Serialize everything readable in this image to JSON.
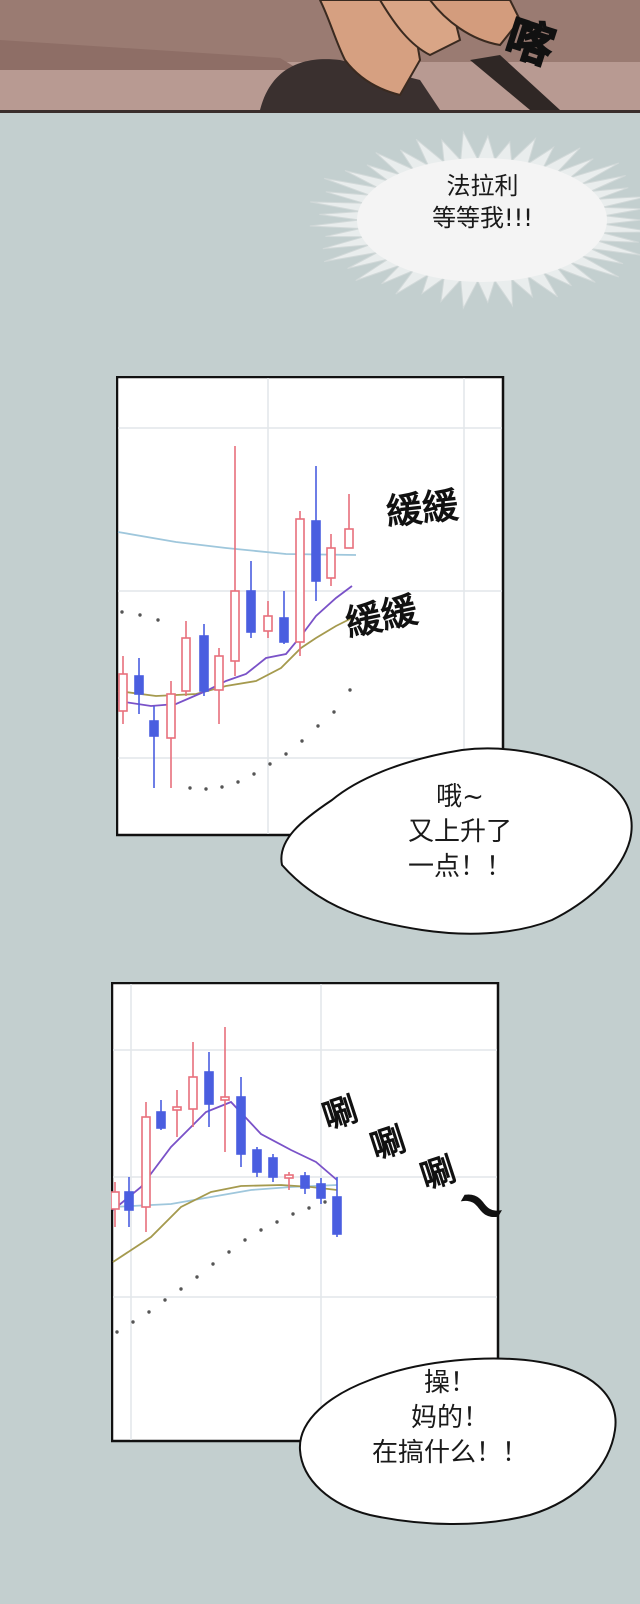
{
  "top_panel": {
    "sfx": "喀"
  },
  "shout_bubble": {
    "line1": "法拉利",
    "line2": "等等我!!!"
  },
  "chart_panel_1": {
    "sfx_1": "緩緩",
    "sfx_2": "緩緩",
    "bubble": {
      "line1": "哦~",
      "line2": "又上升了",
      "line3": "一点！！"
    }
  },
  "chart_panel_2": {
    "sfx_1": "唰",
    "sfx_2": "唰",
    "sfx_3": "唰",
    "sfx_tilde": "~",
    "bubble": {
      "line1": "操！",
      "line2": "妈的！",
      "line3": "在搞什么！！"
    }
  },
  "colors": {
    "background": "#c3cfcf",
    "candle_up": "#e8707c",
    "candle_down": "#4a5ee0",
    "ma_short": "#7a52c8",
    "ma_long": "#a59a4e",
    "ma_flat": "#9fc7dc"
  }
}
